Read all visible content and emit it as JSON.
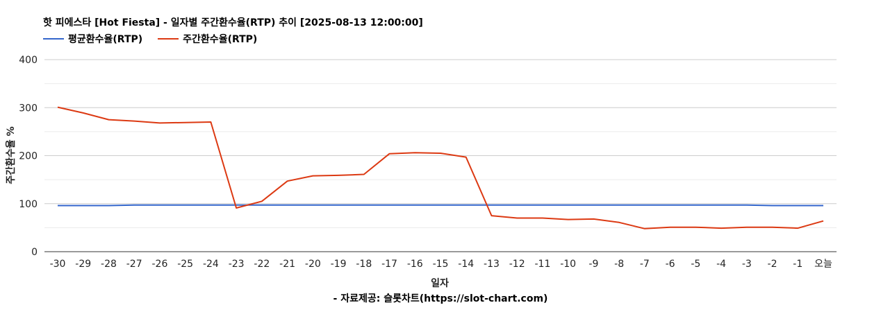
{
  "chart_data": {
    "type": "line",
    "title": "핫 피에스타 [Hot Fiesta] - 일자별 주간환수율(RTP) 추이 [2025-08-13 12:00:00]",
    "xlabel": "일자",
    "ylabel": "주간환수율 %",
    "ylim": [
      0,
      400
    ],
    "yticks": [
      "0",
      "100",
      "200",
      "300",
      "400"
    ],
    "grid": true,
    "legend_position": "top-left",
    "categories": [
      "-30",
      "-29",
      "-28",
      "-27",
      "-26",
      "-25",
      "-24",
      "-23",
      "-22",
      "-21",
      "-20",
      "-19",
      "-18",
      "-17",
      "-16",
      "-15",
      "-14",
      "-13",
      "-12",
      "-11",
      "-10",
      "-9",
      "-8",
      "-7",
      "-6",
      "-5",
      "-4",
      "-3",
      "-2",
      "-1",
      "오늘"
    ],
    "series": [
      {
        "name": "평균환수율(RTP)",
        "color": "#3366cc",
        "values": [
          96,
          96,
          96,
          97,
          97,
          97,
          97,
          97,
          97,
          97,
          97,
          97,
          97,
          97,
          97,
          97,
          97,
          97,
          97,
          97,
          97,
          97,
          97,
          97,
          97,
          97,
          97,
          97,
          96,
          96,
          96
        ]
      },
      {
        "name": "주간환수율(RTP)",
        "color": "#dc3912",
        "values": [
          301,
          289,
          275,
          272,
          268,
          269,
          270,
          91,
          105,
          147,
          158,
          159,
          161,
          204,
          206,
          205,
          197,
          75,
          70,
          70,
          67,
          68,
          61,
          48,
          51,
          51,
          49,
          51,
          51,
          49,
          64
        ]
      }
    ],
    "source": "- 자료제공: 슬롯차트(https://slot-chart.com)"
  }
}
